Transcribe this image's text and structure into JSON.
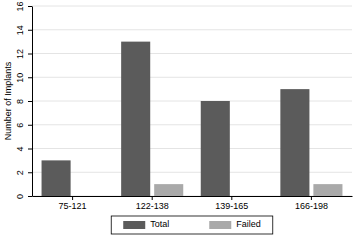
{
  "chart_data": {
    "type": "bar",
    "y_label": "Number of Implants",
    "categories": [
      "75-121",
      "122-138",
      "139-165",
      "166-198"
    ],
    "series": [
      {
        "name": "Total",
        "color": "#5b5b5b",
        "values": [
          3,
          13,
          8,
          9
        ]
      },
      {
        "name": "Failed",
        "color": "#a9a9a9",
        "values": [
          0,
          1,
          0,
          1
        ]
      }
    ],
    "ylim": [
      0,
      16
    ],
    "yticks": [
      0,
      2,
      4,
      6,
      8,
      10,
      12,
      14,
      16
    ],
    "grid": true,
    "legend": "bottom"
  }
}
